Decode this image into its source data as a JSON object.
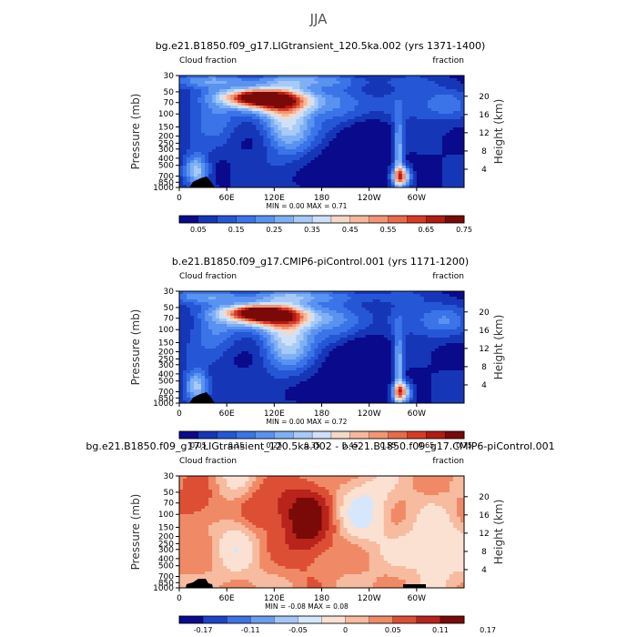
{
  "figure": {
    "title": "JJA"
  },
  "colors": {
    "main_scale": [
      "#0a0a8c",
      "#1636b8",
      "#2556d6",
      "#3a74e8",
      "#5a92f0",
      "#7fb0f5",
      "#a7caf7",
      "#cfe1f8",
      "#f4d8c8",
      "#f5b89c",
      "#f39574",
      "#ea6a4b",
      "#d83a26",
      "#b31a12",
      "#7a0a08"
    ],
    "diff_scale": [
      "#0a0a8c",
      "#1d44c8",
      "#3e72e6",
      "#6e9cf0",
      "#a5c6f7",
      "#d6e7fb",
      "#fbe1d2",
      "#f7bba0",
      "#f08a66",
      "#dd4f34",
      "#b8231b",
      "#7a0a08"
    ]
  },
  "chart_data": [
    {
      "type": "heatmap",
      "title": "bg.e21.B1850.f09_g17.LIGtransient_120.5ka.002 (yrs 1371-1400)",
      "left_label": "Cloud fraction",
      "right_label": "fraction",
      "ylabel": "Pressure (mb)",
      "y2label": "Height (km)",
      "xticks": [
        "0",
        "60E",
        "120E",
        "180",
        "120W",
        "60W"
      ],
      "xtick_lon": [
        0,
        60,
        120,
        180,
        240,
        300
      ],
      "xlim": [
        0,
        360
      ],
      "yticks": [
        "30",
        "50",
        "70",
        "100",
        "150",
        "200",
        "250",
        "300",
        "400",
        "500",
        "700",
        "850",
        "1000"
      ],
      "ylim": [
        30,
        1000
      ],
      "y2ticks": [
        "20",
        "16",
        "12",
        "8",
        "4"
      ],
      "y2tick_km": [
        20,
        16,
        12,
        8,
        4
      ],
      "min_max": "MIN =    0.00   MAX =    0.71",
      "colorbar_labels": [
        "0.05",
        "0.15",
        "0.25",
        "0.35",
        "0.45",
        "0.55",
        "0.65",
        "0.75"
      ],
      "colorbar_levels": [
        0.05,
        0.1,
        0.15,
        0.2,
        0.25,
        0.3,
        0.35,
        0.4,
        0.45,
        0.5,
        0.55,
        0.6,
        0.65,
        0.7,
        0.75
      ],
      "colorbar_label_every": 2,
      "colorbar_label_offset": 0
    },
    {
      "type": "heatmap",
      "title": "b.e21.B1850.f09_g17.CMIP6-piControl.001 (yrs 1171-1200)",
      "left_label": "Cloud fraction",
      "right_label": "fraction",
      "ylabel": "Pressure (mb)",
      "y2label": "Height (km)",
      "xticks": [
        "0",
        "60E",
        "120E",
        "180",
        "120W",
        "60W"
      ],
      "xtick_lon": [
        0,
        60,
        120,
        180,
        240,
        300
      ],
      "xlim": [
        0,
        360
      ],
      "yticks": [
        "30",
        "50",
        "70",
        "100",
        "150",
        "200",
        "250",
        "300",
        "400",
        "500",
        "700",
        "850",
        "1000"
      ],
      "ylim": [
        30,
        1000
      ],
      "y2ticks": [
        "20",
        "16",
        "12",
        "8",
        "4"
      ],
      "y2tick_km": [
        20,
        16,
        12,
        8,
        4
      ],
      "min_max": "MIN =    0.00   MAX =    0.72",
      "colorbar_labels": [
        "0.05",
        "0.15",
        "0.25",
        "0.35",
        "0.45",
        "0.55",
        "0.65",
        "0.75"
      ],
      "colorbar_levels": [
        0.05,
        0.1,
        0.15,
        0.2,
        0.25,
        0.3,
        0.35,
        0.4,
        0.45,
        0.5,
        0.55,
        0.6,
        0.65,
        0.7,
        0.75
      ],
      "colorbar_label_every": 2,
      "colorbar_label_offset": 0
    },
    {
      "type": "heatmap",
      "title": "bg.e21.B1850.f09_g17.LIGtransient_120.5ka.002 - b.e21.B1850.f09_g17.CMIP6-piControl.001",
      "left_label": "Cloud fraction",
      "right_label": "fraction",
      "ylabel": "Pressure (mb)",
      "y2label": "Height (km)",
      "xticks": [
        "0",
        "60E",
        "120E",
        "180",
        "120W",
        "60W"
      ],
      "xtick_lon": [
        0,
        60,
        120,
        180,
        240,
        300
      ],
      "xlim": [
        0,
        360
      ],
      "yticks": [
        "30",
        "50",
        "70",
        "100",
        "150",
        "200",
        "250",
        "300",
        "400",
        "500",
        "700",
        "850",
        "1000"
      ],
      "ylim": [
        30,
        1000
      ],
      "y2ticks": [
        "20",
        "16",
        "12",
        "8",
        "4"
      ],
      "y2tick_km": [
        20,
        16,
        12,
        8,
        4
      ],
      "min_max": "MIN =   -0.08   MAX =    0.08",
      "colorbar_labels": [
        "-0.17",
        "-0.11",
        "-0.05",
        "0",
        "0.05",
        "0.11",
        "0.17"
      ],
      "colorbar_levels": [
        -0.2,
        -0.17,
        -0.14,
        -0.11,
        -0.08,
        -0.05,
        -0.02,
        0,
        0.02,
        0.05,
        0.08,
        0.11,
        0.14,
        0.17,
        0.2
      ],
      "colorbar_label_every": 1,
      "colorbar_label_offset": 0
    }
  ]
}
